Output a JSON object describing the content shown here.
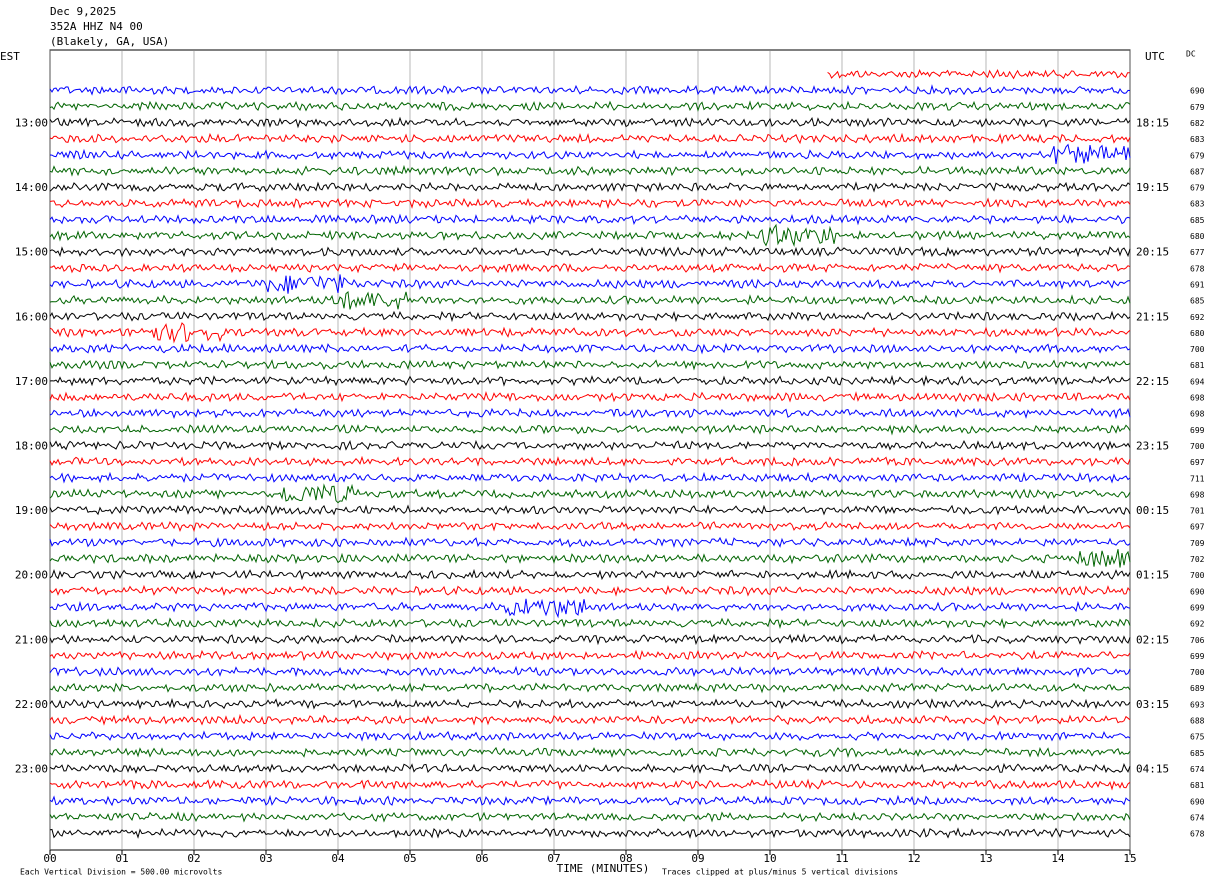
{
  "header": {
    "date": "Dec 9,2025",
    "station": "352A HHZ N4 00",
    "location": "(Blakely, GA, USA)"
  },
  "left_zone": "EST",
  "right_zone": "UTC",
  "dc_heading": "DC",
  "left_times": [
    "13:00",
    "14:00",
    "15:00",
    "16:00",
    "17:00",
    "18:00",
    "19:00",
    "20:00",
    "21:00",
    "22:00",
    "23:00"
  ],
  "right_times": [
    "18:15",
    "19:15",
    "20:15",
    "21:15",
    "22:15",
    "23:15",
    "00:15",
    "01:15",
    "02:15",
    "03:15",
    "04:15"
  ],
  "dc_values": [
    690,
    679,
    682,
    683,
    679,
    687,
    679,
    683,
    685,
    680,
    677,
    678,
    691,
    685,
    692,
    680,
    700,
    681,
    694,
    698,
    698,
    699,
    700,
    697,
    711,
    698,
    701,
    697,
    709,
    702,
    700,
    690,
    699,
    692,
    706,
    699,
    700,
    689,
    693,
    688,
    675,
    685,
    674,
    681,
    690,
    674,
    678
  ],
  "x_ticks": [
    "00",
    "01",
    "02",
    "03",
    "04",
    "05",
    "06",
    "07",
    "08",
    "09",
    "10",
    "11",
    "12",
    "13",
    "14",
    "15"
  ],
  "x_label": "TIME (MINUTES)",
  "scale_note": "Each Vertical Division =  500.00 microvolts",
  "clip_note": "Traces clipped at plus/minus 5 vertical divisions",
  "trace_colors": [
    "#000000",
    "#ff0000",
    "#0000ff",
    "#006400"
  ]
}
